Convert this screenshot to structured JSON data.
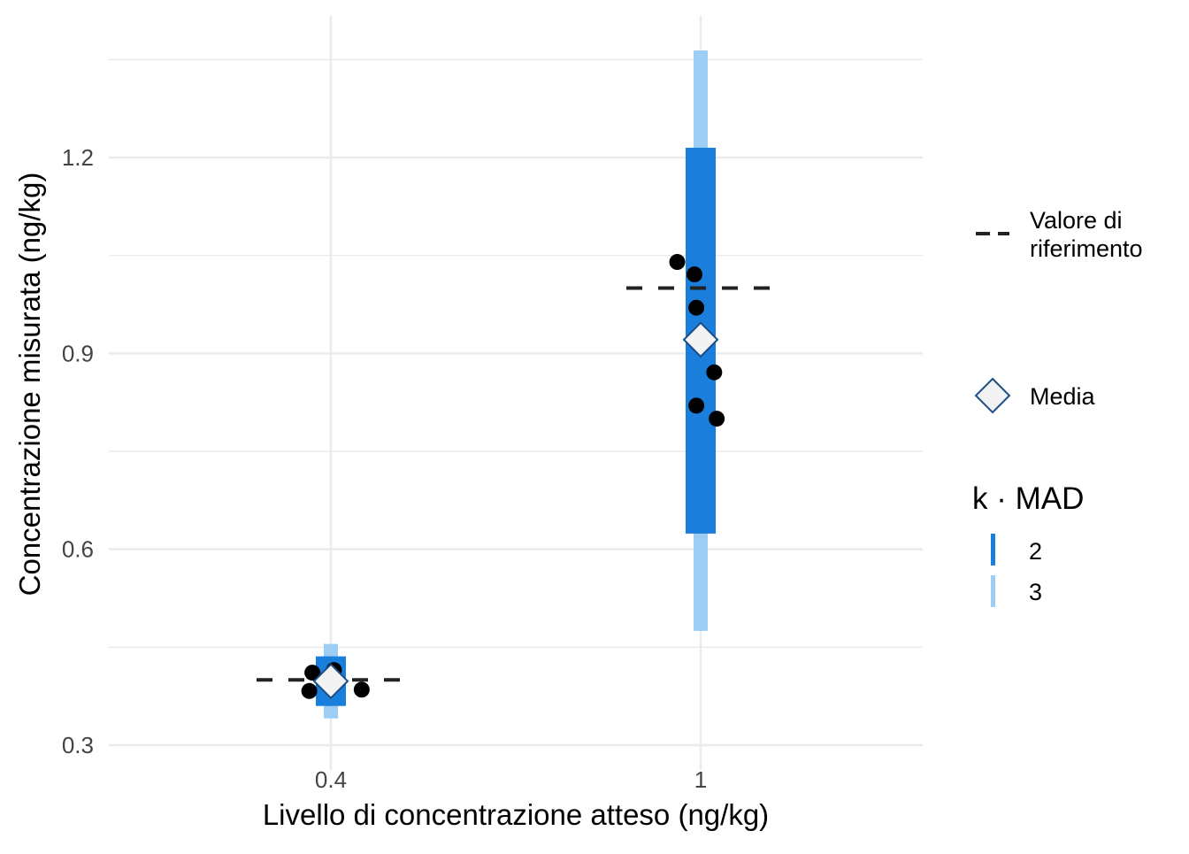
{
  "chart_data": {
    "type": "scatter",
    "title": "",
    "xlabel": "Livello di concentrazione atteso (ng/kg)",
    "ylabel": "Concentrazione misurata (ng/kg)",
    "ylim": [
      0.23,
      1.4
    ],
    "yticks": [
      "0.3",
      "0.6",
      "0.9",
      "1.2"
    ],
    "ytick_values": [
      0.3,
      0.6,
      0.9,
      1.2
    ],
    "categories": [
      "0.4",
      "1"
    ],
    "grid": true,
    "groups": [
      {
        "category": "0.4",
        "reference": 0.4,
        "mean": 0.398,
        "band_2mad": [
          0.36,
          0.436
        ],
        "band_3mad": [
          0.341,
          0.455
        ],
        "points": [
          {
            "y": 0.411,
            "jitter": -0.03
          },
          {
            "y": 0.415,
            "jitter": 0.005
          },
          {
            "y": 0.383,
            "jitter": -0.035
          },
          {
            "y": 0.385,
            "jitter": 0.05
          }
        ]
      },
      {
        "category": "1",
        "reference": 1.0,
        "mean": 0.921,
        "band_2mad": [
          0.624,
          1.215
        ],
        "band_3mad": [
          0.475,
          1.364
        ],
        "points": [
          {
            "y": 1.04,
            "jitter": -0.038
          },
          {
            "y": 1.021,
            "jitter": -0.01
          },
          {
            "y": 0.97,
            "jitter": -0.007
          },
          {
            "y": 0.871,
            "jitter": 0.022
          },
          {
            "y": 0.82,
            "jitter": -0.007
          },
          {
            "y": 0.8,
            "jitter": 0.026
          }
        ]
      }
    ],
    "legend": {
      "placement": "right",
      "reference_label_line1": "Valore di",
      "reference_label_line2": "riferimento",
      "mean_label": "Media",
      "kmad_title": "k · MAD",
      "kmad_items": [
        {
          "label": "2",
          "color": "#1a7fdc"
        },
        {
          "label": "3",
          "color": "#9ecdf3"
        }
      ]
    },
    "colors": {
      "band_2": "#1a7fdc",
      "band_3": "#9ecdf3",
      "point": "#000000",
      "mean_fill": "#f2f2f2",
      "mean_stroke": "#1d4f86",
      "reference": "#222222",
      "grid": "#ebebeb"
    }
  }
}
